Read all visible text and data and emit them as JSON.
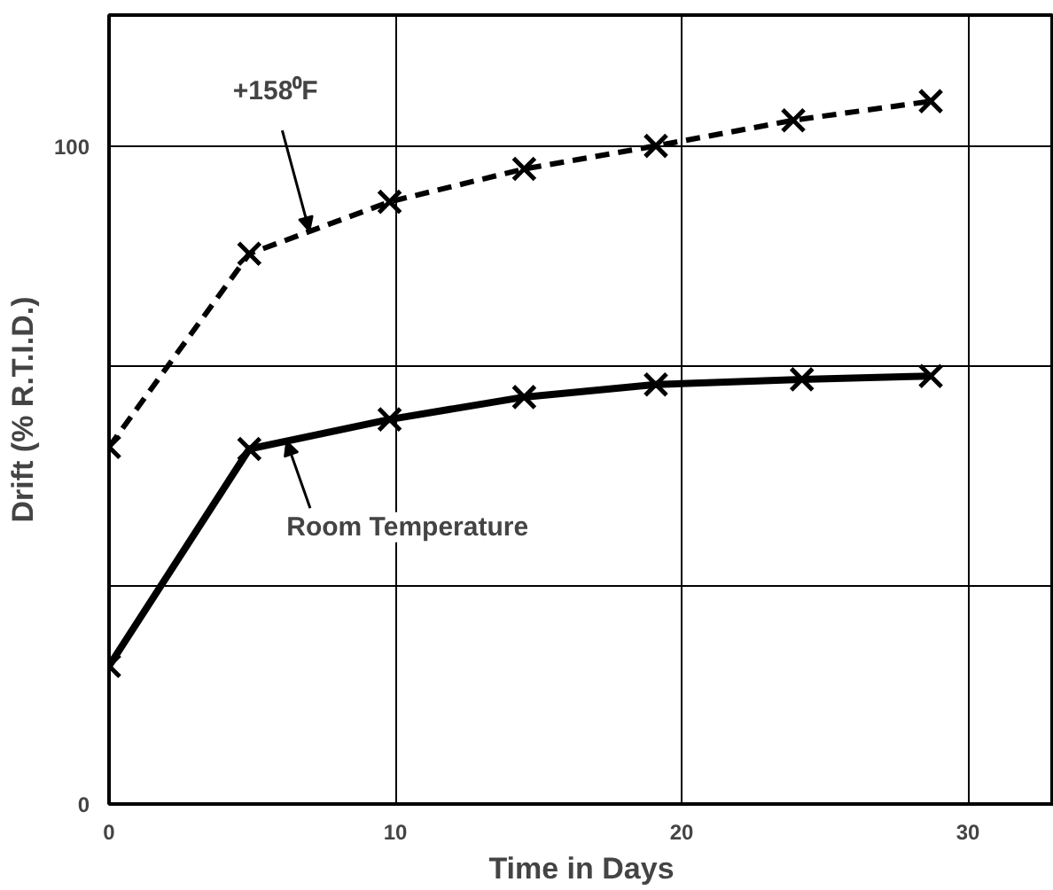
{
  "chart_data": {
    "type": "line",
    "xlabel": "Time in Days",
    "ylabel": "Drift (% R.T.I.D.)",
    "xlim": [
      0,
      33
    ],
    "ylim": [
      0,
      120
    ],
    "xticks": [
      0,
      10,
      20,
      30
    ],
    "yticks": [
      0,
      {
        "value": 33.3,
        "label": null
      },
      {
        "value": 66.7,
        "label": null
      },
      100
    ],
    "grid": true,
    "marker": "cross",
    "series": [
      {
        "color": "#000000",
        "line_style": "dashed",
        "x": [
          0,
          4.9,
          9.8,
          14.5,
          19.1,
          23.9,
          28.7
        ],
        "values": [
          54.3,
          83.7,
          91.6,
          96.6,
          100.1,
          104.0,
          106.9
        ]
      },
      {
        "color": "#000000",
        "line_style": "solid",
        "x": [
          0,
          4.9,
          9.8,
          14.5,
          19.1,
          24.2,
          28.7
        ],
        "values": [
          21.0,
          54.0,
          58.5,
          61.9,
          63.8,
          64.6,
          65.1
        ]
      }
    ],
    "annotations": [
      {
        "text": "+158⁰F",
        "x": 7.0,
        "y": 87.1
      },
      {
        "text": "Room Temperature",
        "x": 6.2,
        "y": 55.2
      }
    ]
  }
}
